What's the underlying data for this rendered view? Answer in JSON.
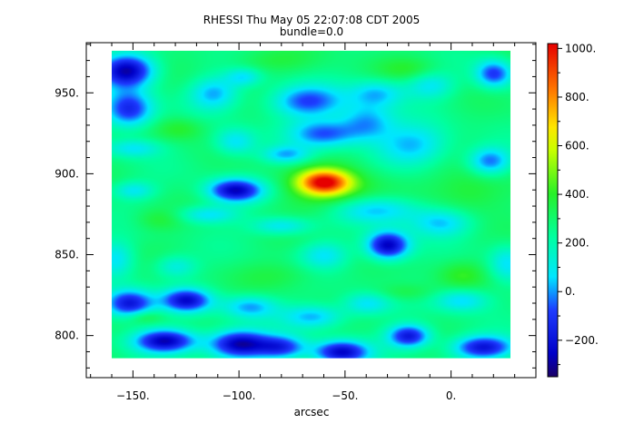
{
  "chart_data": {
    "type": "heatmap",
    "title": "RHESSI Thu May 05 22:07:08 CDT 2005",
    "subtitle": "bundle=0.0",
    "xlabel": "arcsec",
    "ylabel": "",
    "xlim": [
      -172,
      40
    ],
    "ylim": [
      774,
      981
    ],
    "data_extent": {
      "x": [
        -160,
        28
      ],
      "y": [
        786,
        976
      ]
    },
    "x_ticks": [
      {
        "value": -150,
        "label": "−150."
      },
      {
        "value": -100,
        "label": "−100."
      },
      {
        "value": -50,
        "label": "−50."
      },
      {
        "value": 0,
        "label": "0."
      }
    ],
    "y_ticks": [
      {
        "value": 800,
        "label": "800."
      },
      {
        "value": 850,
        "label": "850."
      },
      {
        "value": 900,
        "label": "900."
      },
      {
        "value": 950,
        "label": "950."
      }
    ],
    "colorbar": {
      "range": [
        -350,
        1020
      ],
      "colormap": "rainbow",
      "ticks": [
        {
          "value": -200,
          "label": "−200."
        },
        {
          "value": 0,
          "label": "0."
        },
        {
          "value": 200,
          "label": "200."
        },
        {
          "value": 400,
          "label": "400."
        },
        {
          "value": 600,
          "label": "600."
        },
        {
          "value": 800,
          "label": "800."
        },
        {
          "value": 1000,
          "label": "1000."
        }
      ]
    },
    "background_level": 280,
    "peak": {
      "x": -60,
      "y": 895,
      "value": 1000
    },
    "features": [
      {
        "x": -60,
        "y": 895,
        "sx": 8,
        "sy": 5,
        "amp": 640
      },
      {
        "x": -55,
        "y": 890,
        "sx": 18,
        "sy": 12,
        "amp": 150
      },
      {
        "x": -153,
        "y": 964,
        "sx": 9,
        "sy": 7,
        "amp": -560
      },
      {
        "x": -152,
        "y": 940,
        "sx": 8,
        "sy": 8,
        "amp": -430
      },
      {
        "x": -150,
        "y": 916,
        "sx": 9,
        "sy": 4,
        "amp": -200
      },
      {
        "x": -112,
        "y": 950,
        "sx": 8,
        "sy": 7,
        "amp": -260
      },
      {
        "x": -98,
        "y": 960,
        "sx": 6,
        "sy": 4,
        "amp": -200
      },
      {
        "x": -102,
        "y": 920,
        "sx": 7,
        "sy": 6,
        "amp": -230
      },
      {
        "x": -68,
        "y": 945,
        "sx": 12,
        "sy": 7,
        "amp": -360
      },
      {
        "x": -60,
        "y": 925,
        "sx": 11,
        "sy": 6,
        "amp": -330
      },
      {
        "x": -40,
        "y": 932,
        "sx": 9,
        "sy": 8,
        "amp": -280
      },
      {
        "x": -18,
        "y": 918,
        "sx": 12,
        "sy": 9,
        "amp": -260
      },
      {
        "x": -78,
        "y": 912,
        "sx": 8,
        "sy": 4,
        "amp": -260
      },
      {
        "x": -35,
        "y": 950,
        "sx": 9,
        "sy": 6,
        "amp": -240
      },
      {
        "x": -10,
        "y": 955,
        "sx": 8,
        "sy": 6,
        "amp": -200
      },
      {
        "x": 20,
        "y": 962,
        "sx": 6,
        "sy": 6,
        "amp": -380
      },
      {
        "x": 18,
        "y": 908,
        "sx": 7,
        "sy": 6,
        "amp": -330
      },
      {
        "x": -102,
        "y": 890,
        "sx": 9,
        "sy": 5,
        "amp": -530
      },
      {
        "x": -150,
        "y": 890,
        "sx": 7,
        "sy": 4,
        "amp": -200
      },
      {
        "x": -115,
        "y": 875,
        "sx": 10,
        "sy": 4,
        "amp": -230
      },
      {
        "x": -80,
        "y": 868,
        "sx": 10,
        "sy": 4,
        "amp": -230
      },
      {
        "x": -35,
        "y": 878,
        "sx": 15,
        "sy": 6,
        "amp": -280
      },
      {
        "x": -30,
        "y": 856,
        "sx": 7,
        "sy": 6,
        "amp": -560
      },
      {
        "x": -5,
        "y": 870,
        "sx": 10,
        "sy": 6,
        "amp": -240
      },
      {
        "x": -60,
        "y": 850,
        "sx": 8,
        "sy": 6,
        "amp": -200
      },
      {
        "x": -158,
        "y": 848,
        "sx": 6,
        "sy": 8,
        "amp": -200
      },
      {
        "x": -130,
        "y": 843,
        "sx": 7,
        "sy": 5,
        "amp": -180
      },
      {
        "x": 26,
        "y": 845,
        "sx": 6,
        "sy": 8,
        "amp": -200
      },
      {
        "x": -152,
        "y": 820,
        "sx": 8,
        "sy": 6,
        "amp": -500
      },
      {
        "x": -125,
        "y": 822,
        "sx": 8,
        "sy": 5,
        "amp": -480
      },
      {
        "x": -95,
        "y": 818,
        "sx": 9,
        "sy": 5,
        "amp": -280
      },
      {
        "x": -65,
        "y": 812,
        "sx": 10,
        "sy": 5,
        "amp": -260
      },
      {
        "x": -40,
        "y": 820,
        "sx": 8,
        "sy": 5,
        "amp": -220
      },
      {
        "x": 5,
        "y": 822,
        "sx": 9,
        "sy": 5,
        "amp": -240
      },
      {
        "x": -135,
        "y": 797,
        "sx": 10,
        "sy": 5,
        "amp": -540
      },
      {
        "x": -100,
        "y": 795,
        "sx": 10,
        "sy": 6,
        "amp": -580
      },
      {
        "x": -80,
        "y": 793,
        "sx": 8,
        "sy": 5,
        "amp": -380
      },
      {
        "x": -52,
        "y": 790,
        "sx": 9,
        "sy": 5,
        "amp": -520
      },
      {
        "x": -20,
        "y": 800,
        "sx": 7,
        "sy": 5,
        "amp": -480
      },
      {
        "x": 15,
        "y": 793,
        "sx": 10,
        "sy": 5,
        "amp": -480
      },
      {
        "x": -128,
        "y": 928,
        "sx": 8,
        "sy": 5,
        "amp": 120
      },
      {
        "x": -85,
        "y": 970,
        "sx": 14,
        "sy": 5,
        "amp": 80
      },
      {
        "x": -20,
        "y": 965,
        "sx": 10,
        "sy": 5,
        "amp": 100
      },
      {
        "x": 10,
        "y": 890,
        "sx": 12,
        "sy": 10,
        "amp": 130
      },
      {
        "x": -138,
        "y": 872,
        "sx": 8,
        "sy": 5,
        "amp": 110
      },
      {
        "x": -80,
        "y": 838,
        "sx": 14,
        "sy": 6,
        "amp": 70
      },
      {
        "x": 5,
        "y": 838,
        "sx": 8,
        "sy": 6,
        "amp": 110
      },
      {
        "x": -22,
        "y": 827,
        "sx": 10,
        "sy": 4,
        "amp": 100
      },
      {
        "x": -145,
        "y": 812,
        "sx": 6,
        "sy": 3,
        "amp": 120
      }
    ]
  }
}
